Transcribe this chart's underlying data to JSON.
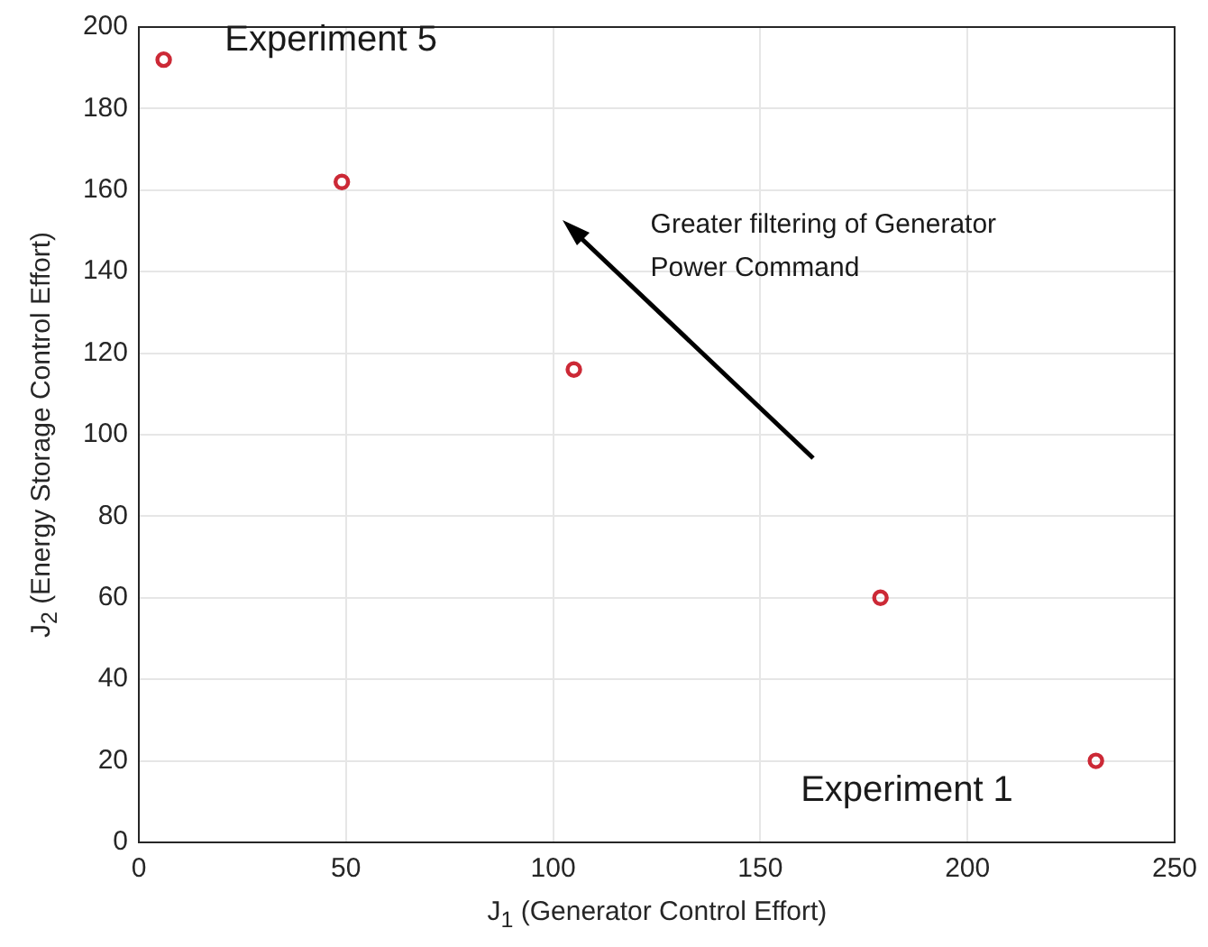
{
  "chart_data": {
    "type": "scatter",
    "xlabel": "J$_{1}$ (Generator Control Effort)",
    "ylabel": "J$_{2}$ (Energy Storage Control Effort)",
    "x": [
      6,
      49,
      105,
      179,
      231
    ],
    "values": [
      192,
      162,
      116,
      60,
      20
    ],
    "color": "#cc2936",
    "marker": "circle",
    "grid": true,
    "xlim": [
      0,
      250
    ],
    "xticks": [
      0,
      50,
      100,
      150,
      200,
      250
    ],
    "ylim": [
      0,
      200
    ],
    "yticks": [
      0,
      20,
      40,
      60,
      80,
      100,
      120,
      140,
      160,
      180,
      200
    ],
    "annotations": [
      "Experiment 5",
      "Experiment 1",
      "Greater filtering of Generator Power Command"
    ]
  }
}
